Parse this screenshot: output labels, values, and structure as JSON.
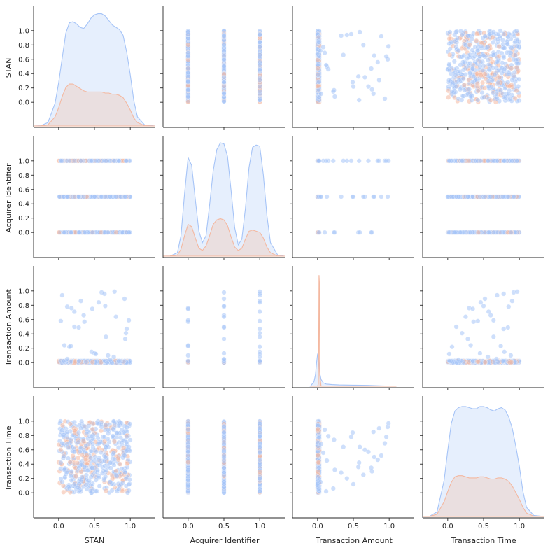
{
  "chart_data": {
    "type": "scatter",
    "subtype": "pairplot",
    "variables": [
      "STAN",
      "Acquirer Identifier",
      "Transaction Amount",
      "Transaction Time"
    ],
    "hue_colors": [
      "#a6c4f7",
      "#f4b8a0"
    ],
    "axis_range": [
      -0.35,
      1.35
    ],
    "ticks": [
      0.0,
      0.2,
      0.4,
      0.6,
      0.8,
      1.0
    ],
    "tick_labels": [
      "0.0",
      "0.2",
      "0.4",
      "0.6",
      "0.8",
      "1.0"
    ],
    "bottom_ticks": [
      0.0,
      0.5,
      1.0
    ],
    "bottom_tick_labels": [
      "0.0",
      "0.5",
      "1.0"
    ],
    "diagonal": [
      {
        "variable": "STAN",
        "x": [
          -0.35,
          -0.25,
          -0.15,
          -0.05,
          0.0,
          0.05,
          0.1,
          0.15,
          0.2,
          0.25,
          0.3,
          0.35,
          0.4,
          0.45,
          0.5,
          0.55,
          0.6,
          0.65,
          0.7,
          0.75,
          0.8,
          0.85,
          0.9,
          0.95,
          1.0,
          1.05,
          1.1,
          1.2,
          1.35
        ],
        "series": [
          {
            "values": [
              0,
              0.003,
              0.03,
              0.2,
              0.38,
              0.6,
              0.82,
              0.91,
              0.92,
              0.9,
              0.87,
              0.86,
              0.9,
              0.95,
              0.98,
              0.99,
              0.99,
              0.97,
              0.93,
              0.89,
              0.87,
              0.85,
              0.8,
              0.65,
              0.45,
              0.22,
              0.08,
              0.01,
              0
            ]
          },
          {
            "values": [
              0,
              0.001,
              0.01,
              0.08,
              0.16,
              0.26,
              0.34,
              0.37,
              0.37,
              0.35,
              0.33,
              0.31,
              0.3,
              0.3,
              0.3,
              0.3,
              0.3,
              0.29,
              0.29,
              0.28,
              0.28,
              0.27,
              0.25,
              0.2,
              0.14,
              0.07,
              0.03,
              0.003,
              0
            ]
          }
        ]
      },
      {
        "variable": "Acquirer Identifier",
        "x": [
          -0.35,
          -0.25,
          -0.15,
          -0.1,
          -0.05,
          0.0,
          0.05,
          0.1,
          0.15,
          0.2,
          0.25,
          0.3,
          0.35,
          0.4,
          0.45,
          0.5,
          0.55,
          0.6,
          0.65,
          0.7,
          0.75,
          0.8,
          0.85,
          0.9,
          0.95,
          1.0,
          1.05,
          1.1,
          1.15,
          1.25,
          1.35
        ],
        "series": [
          {
            "values": [
              0,
              0.001,
              0.03,
              0.18,
              0.55,
              0.87,
              0.8,
              0.5,
              0.22,
              0.12,
              0.18,
              0.45,
              0.75,
              0.94,
              1.0,
              0.99,
              0.88,
              0.58,
              0.25,
              0.1,
              0.15,
              0.42,
              0.78,
              0.96,
              0.98,
              0.97,
              0.72,
              0.36,
              0.12,
              0.01,
              0
            ]
          },
          {
            "values": [
              0,
              0.001,
              0.01,
              0.06,
              0.18,
              0.28,
              0.26,
              0.16,
              0.07,
              0.05,
              0.09,
              0.18,
              0.28,
              0.32,
              0.33,
              0.32,
              0.27,
              0.17,
              0.08,
              0.05,
              0.07,
              0.15,
              0.22,
              0.23,
              0.22,
              0.21,
              0.16,
              0.08,
              0.03,
              0.002,
              0
            ]
          }
        ]
      },
      {
        "variable": "Transaction Amount",
        "x": [
          -0.1,
          -0.05,
          -0.03,
          -0.015,
          0.0,
          0.01,
          0.015,
          0.02,
          0.025,
          0.03,
          0.05,
          0.08,
          0.12,
          0.2,
          0.3,
          0.5,
          0.7,
          0.9,
          1.0,
          1.1
        ],
        "series": [
          {
            "values": [
              0,
              0.04,
              0.1,
              0.2,
              0.28,
              0.27,
              0.24,
              0.2,
              0.16,
              0.12,
              0.06,
              0.03,
              0.02,
              0.015,
              0.012,
              0.01,
              0.008,
              0.004,
              0.002,
              0
            ]
          },
          {
            "values": [
              0,
              0,
              0,
              0,
              0,
              0.02,
              0.3,
              0.98,
              0.92,
              0.1,
              0,
              0,
              0,
              0,
              0,
              0,
              0,
              0,
              0,
              0
            ]
          }
        ]
      },
      {
        "variable": "Transaction Time",
        "x": [
          -0.35,
          -0.25,
          -0.15,
          -0.05,
          0.0,
          0.05,
          0.1,
          0.15,
          0.2,
          0.25,
          0.3,
          0.35,
          0.4,
          0.45,
          0.5,
          0.55,
          0.6,
          0.65,
          0.7,
          0.75,
          0.8,
          0.85,
          0.9,
          0.95,
          1.0,
          1.05,
          1.1,
          1.2,
          1.35
        ],
        "series": [
          {
            "values": [
              0,
              0.003,
              0.04,
              0.32,
              0.58,
              0.82,
              0.93,
              0.96,
              0.97,
              0.97,
              0.96,
              0.95,
              0.95,
              0.97,
              0.97,
              0.96,
              0.94,
              0.93,
              0.95,
              0.96,
              0.94,
              0.88,
              0.78,
              0.62,
              0.44,
              0.22,
              0.08,
              0.01,
              0
            ]
          },
          {
            "values": [
              0,
              0.001,
              0.02,
              0.13,
              0.22,
              0.3,
              0.35,
              0.36,
              0.36,
              0.35,
              0.34,
              0.34,
              0.34,
              0.35,
              0.35,
              0.34,
              0.33,
              0.33,
              0.34,
              0.34,
              0.33,
              0.31,
              0.27,
              0.21,
              0.15,
              0.08,
              0.03,
              0.003,
              0
            ]
          }
        ]
      }
    ],
    "amount_outliers": [
      {
        "amount": 0.94,
        "stan": 0.05,
        "acquirer": 1.0,
        "time": 0.69
      },
      {
        "amount": 0.78,
        "stan": 0.12,
        "acquirer": 0.5,
        "time": 0.85
      },
      {
        "amount": 0.71,
        "stan": 0.22,
        "acquirer": 1.0,
        "time": 0.57
      },
      {
        "amount": 0.76,
        "stan": 0.18,
        "acquirer": 0.0,
        "time": 0.3
      },
      {
        "amount": 0.58,
        "stan": 0.03,
        "acquirer": 1.0,
        "time": 0.42
      },
      {
        "amount": 0.5,
        "stan": 0.22,
        "acquirer": 0.5,
        "time": 0.12
      },
      {
        "amount": 0.49,
        "stan": 0.28,
        "acquirer": 0.5,
        "time": 0.84
      },
      {
        "amount": 0.66,
        "stan": 0.35,
        "acquirer": 0.5,
        "time": 0.6
      },
      {
        "amount": 0.57,
        "stan": 0.36,
        "acquirer": 0.0,
        "time": 0.36
      },
      {
        "amount": 0.86,
        "stan": 0.31,
        "acquirer": 1.0,
        "time": 0.9
      },
      {
        "amount": 0.98,
        "stan": 0.6,
        "acquirer": 0.5,
        "time": 0.92
      },
      {
        "amount": 0.96,
        "stan": 0.64,
        "acquirer": 1.0,
        "time": 0.78
      },
      {
        "amount": 0.84,
        "stan": 0.56,
        "acquirer": 1.0,
        "time": 0.46
      },
      {
        "amount": 0.79,
        "stan": 0.65,
        "acquirer": 0.5,
        "time": 0.5
      },
      {
        "amount": 0.75,
        "stan": 0.47,
        "acquirer": 0.0,
        "time": 0.35
      },
      {
        "amount": 0.99,
        "stan": 0.78,
        "acquirer": 1.0,
        "time": 0.97
      },
      {
        "amount": 0.64,
        "stan": 0.8,
        "acquirer": 0.5,
        "time": 0.25
      },
      {
        "amount": 0.89,
        "stan": 0.92,
        "acquirer": 0.5,
        "time": 0.52
      },
      {
        "amount": 0.47,
        "stan": 0.95,
        "acquirer": 1.0,
        "time": 0.78
      },
      {
        "amount": 0.59,
        "stan": 0.98,
        "acquirer": 0.0,
        "time": 0.64
      },
      {
        "amount": 0.41,
        "stan": 0.94,
        "acquirer": 1.0,
        "time": 0.2
      },
      {
        "amount": 0.33,
        "stan": 0.93,
        "acquirer": 0.5,
        "time": 0.28
      },
      {
        "amount": 0.36,
        "stan": 0.66,
        "acquirer": 1.0,
        "time": 0.64
      },
      {
        "amount": 0.22,
        "stan": 0.15,
        "acquirer": 1.0,
        "time": 0.06
      },
      {
        "amount": 0.24,
        "stan": 0.08,
        "acquirer": 0.0,
        "time": 0.32
      },
      {
        "amount": 0.15,
        "stan": 0.46,
        "acquirer": 1.0,
        "time": 0.79
      },
      {
        "amount": 0.13,
        "stan": 0.5,
        "acquirer": 0.5,
        "time": 0.45
      },
      {
        "amount": 0.1,
        "stan": 0.69,
        "acquirer": 0.0,
        "time": 0.88
      },
      {
        "amount": 0.08,
        "stan": 0.77,
        "acquirer": 1.0,
        "time": 0.56
      },
      {
        "amount": 0.04,
        "stan": 0.72,
        "acquirer": 0.5,
        "time": 0.15
      },
      {
        "amount": 0.23,
        "stan": 0.17,
        "acquirer": 0.0,
        "time": 0.74
      },
      {
        "amount": 0.02,
        "stan": 0.84,
        "acquirer": 1.0,
        "time": 0.05
      },
      {
        "amount": 0.05,
        "stan": 0.12,
        "acquirer": 0.5,
        "time": 0.68
      },
      {
        "amount": 0.12,
        "stan": 0.52,
        "acquirer": 1.0,
        "time": 0.02
      }
    ],
    "sample_size": 520
  }
}
